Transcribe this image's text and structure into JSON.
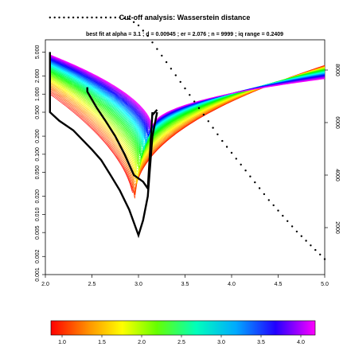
{
  "chart_data": {
    "type": "line",
    "title": "Cut-off analysis: Wasserstein distance",
    "subtitle": {
      "best_label": "best fit at",
      "parts": [
        {
          "name": "alpha",
          "value": "3.1"
        },
        {
          "name": "d",
          "value": "0.00945"
        },
        {
          "name": "er",
          "value": "2.076"
        },
        {
          "name": "n",
          "value": "9999"
        },
        {
          "name": "iq range",
          "value": "0.2409"
        }
      ]
    },
    "xlim": [
      2.0,
      5.0
    ],
    "x_ticks": [
      2.0,
      2.5,
      3.0,
      3.5,
      4.0,
      4.5,
      5.0
    ],
    "x_tick_labels": [
      "2.0",
      "2.5",
      "3.0",
      "3.5",
      "4.0",
      "4.5",
      "5.0"
    ],
    "y_log_ticks": [
      0.001,
      0.002,
      0.005,
      0.01,
      0.02,
      0.05,
      0.1,
      0.2,
      0.5,
      1.0,
      2.0,
      5.0
    ],
    "y_left_tick_labels": [
      "0.001",
      "0.002",
      "0.005",
      "0.010",
      "0.020",
      "0.050",
      "0.100",
      "0.200",
      "0.500",
      "1.000",
      "2.000",
      "5.000"
    ],
    "right_ticks": [
      2000,
      4000,
      6000,
      8000
    ],
    "right_tick_labels": [
      "2000",
      "4000",
      "6000",
      "8000"
    ],
    "right_lim": [
      0,
      10000
    ],
    "colorbar": {
      "range": [
        1.0,
        4.0
      ],
      "ticks": [
        1.0,
        1.5,
        2.0,
        2.5,
        3.0,
        3.5,
        4.0
      ],
      "tick_labels": [
        "1.0",
        "1.5",
        "2.0",
        "2.5",
        "3.0",
        "3.5",
        "4.0"
      ]
    },
    "curve_family": {
      "alpha_min": 1.0,
      "alpha_max": 4.0,
      "count": 60
    },
    "best_fit_x": 3.0,
    "envelope": {
      "x": [
        2.05,
        2.05,
        2.15,
        2.3,
        2.5,
        2.6,
        2.7,
        2.8,
        2.9,
        3.0,
        3.05,
        3.1,
        3.15,
        3.2
      ],
      "values": [
        5.0,
        0.5,
        0.36,
        0.25,
        0.12,
        0.08,
        0.045,
        0.025,
        0.012,
        0.0045,
        0.008,
        0.02,
        0.2,
        0.5
      ]
    },
    "envelope_upper": {
      "x": [
        2.45,
        2.45,
        2.55,
        2.65,
        2.75,
        2.85,
        2.95,
        3.05,
        3.1,
        3.15,
        3.15,
        3.2
      ],
      "values": [
        1.3,
        1.1,
        0.6,
        0.35,
        0.2,
        0.1,
        0.045,
        0.035,
        0.027,
        0.5,
        0.45,
        0.55
      ]
    },
    "sample_size": {
      "x": [
        2.05,
        2.2,
        2.4,
        2.6,
        2.8,
        2.9,
        3.0,
        3.1,
        3.2,
        3.3,
        3.4,
        3.5,
        3.6,
        3.7,
        3.8,
        3.9,
        4.0,
        4.1,
        4.2,
        4.3,
        4.4,
        4.5,
        4.6,
        4.7,
        4.8,
        4.9,
        5.0
      ],
      "values": [
        9999,
        9999,
        9999,
        9999,
        9999,
        9950,
        9700,
        9300,
        8800,
        8300,
        7800,
        7300,
        6800,
        6300,
        5800,
        5300,
        4850,
        4400,
        3950,
        3500,
        3050,
        2650,
        2250,
        1850,
        1500,
        1150,
        800
      ]
    }
  }
}
